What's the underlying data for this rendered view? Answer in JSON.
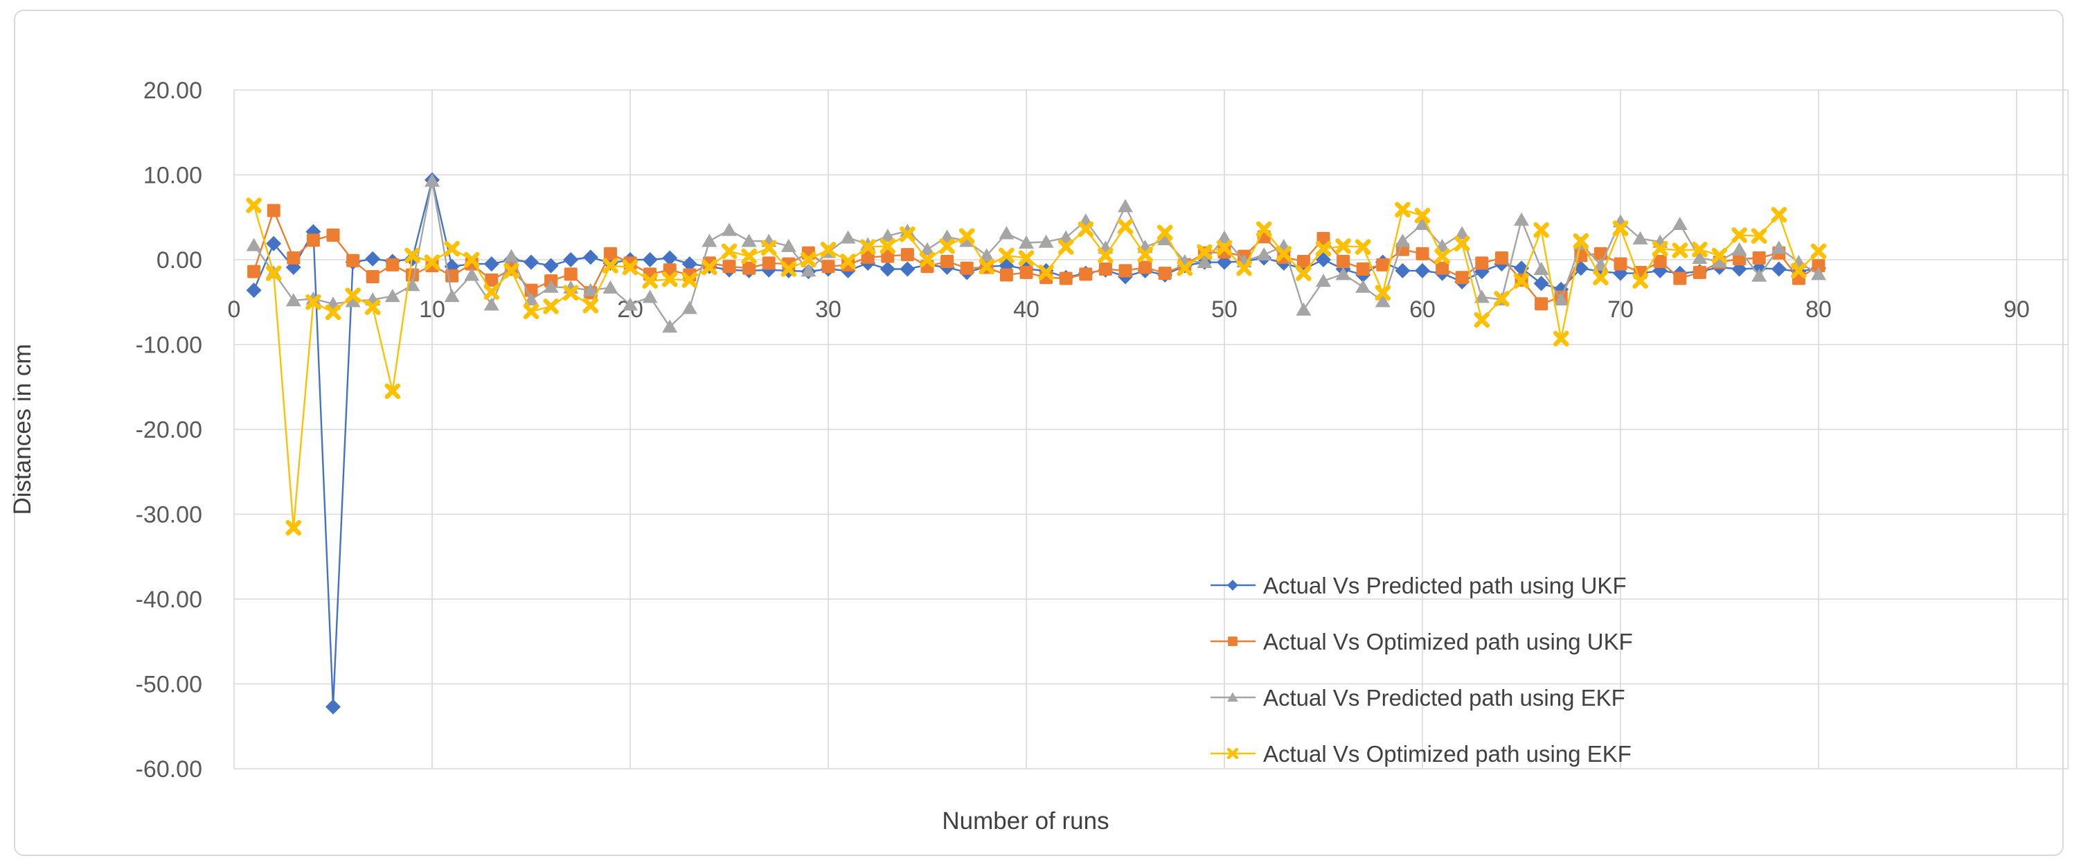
{
  "chart_data": {
    "type": "line",
    "title": "",
    "xlabel": "Number of runs",
    "ylabel": "Distances in cm",
    "x_ticks": [
      0,
      10,
      20,
      30,
      40,
      50,
      60,
      70,
      80,
      90
    ],
    "y_ticks": [
      {
        "label": "20.00",
        "value": 20
      },
      {
        "label": "10.00",
        "value": 10
      },
      {
        "label": "0.00",
        "value": 0
      },
      {
        "label": "-10.00",
        "value": -10
      },
      {
        "label": "-20.00",
        "value": -20
      },
      {
        "label": "-30.00",
        "value": -30
      },
      {
        "label": "-40.00",
        "value": -40
      },
      {
        "label": "-50.00",
        "value": -50
      },
      {
        "label": "-60.00",
        "value": -60
      }
    ],
    "xlim": [
      0,
      92.6
    ],
    "ylim": [
      -60,
      20
    ],
    "grid": true,
    "legend_position": "inside-center-right",
    "grid_color": "#d9d9d9",
    "tick_label_color": "#595959",
    "axis_title_color": "#404040",
    "x": [
      1,
      2,
      3,
      4,
      5,
      6,
      7,
      8,
      9,
      10,
      11,
      12,
      13,
      14,
      15,
      16,
      17,
      18,
      19,
      20,
      21,
      22,
      23,
      24,
      25,
      26,
      27,
      28,
      29,
      30,
      31,
      32,
      33,
      34,
      35,
      36,
      37,
      38,
      39,
      40,
      41,
      42,
      43,
      44,
      45,
      46,
      47,
      48,
      49,
      50,
      51,
      52,
      53,
      54,
      55,
      56,
      57,
      58,
      59,
      60,
      61,
      62,
      63,
      64,
      65,
      66,
      67,
      68,
      69,
      70,
      71,
      72,
      73,
      74,
      75,
      76,
      77,
      78,
      79,
      80
    ],
    "series": [
      {
        "name": "Actual Vs Predicted path using UKF",
        "color": "#4472c4",
        "marker": "diamond",
        "values": [
          -3.6,
          1.9,
          -0.9,
          3.3,
          -52.7,
          -0.3,
          0.1,
          -0.2,
          0.1,
          9.4,
          -0.8,
          -0.5,
          -0.5,
          0.0,
          -0.3,
          -0.7,
          0.0,
          0.3,
          -0.4,
          0.0,
          0.0,
          0.2,
          -0.5,
          -0.8,
          -1.2,
          -1.3,
          -1.2,
          -1.3,
          -1.4,
          -1.1,
          -1.3,
          -0.4,
          -1.1,
          -1.1,
          -0.6,
          -0.9,
          -1.5,
          -0.8,
          -0.7,
          -1.1,
          -1.3,
          -2.1,
          -1.6,
          -1.2,
          -2.0,
          -1.3,
          -1.8,
          -0.7,
          -0.3,
          -0.3,
          -0.2,
          0.2,
          -0.4,
          -1.1,
          0.0,
          -1.1,
          -1.8,
          -0.3,
          -1.3,
          -1.3,
          -1.6,
          -2.6,
          -1.4,
          -0.5,
          -1.0,
          -2.8,
          -3.5,
          -1.0,
          -1.4,
          -1.6,
          -1.6,
          -1.3,
          -1.6,
          -1.4,
          -0.9,
          -1.1,
          -1.0,
          -1.1,
          -1.4,
          -1.0
        ]
      },
      {
        "name": "Actual Vs Optimized path using UKF",
        "color": "#ed7d31",
        "marker": "square",
        "values": [
          -1.4,
          5.8,
          0.2,
          2.3,
          2.9,
          -0.1,
          -2.0,
          -0.6,
          -1.8,
          -0.7,
          -1.9,
          -0.5,
          -2.4,
          -1.1,
          -3.6,
          -2.5,
          -1.7,
          -3.9,
          0.7,
          -0.4,
          -1.7,
          -1.2,
          -1.8,
          -0.4,
          -0.8,
          -1.0,
          -0.4,
          -0.5,
          0.8,
          -0.8,
          -0.6,
          0.3,
          0.4,
          0.6,
          -0.8,
          -0.2,
          -1.0,
          -0.9,
          -1.8,
          -1.5,
          -2.1,
          -2.2,
          -1.7,
          -1.1,
          -1.3,
          -0.9,
          -1.6,
          -0.6,
          0.8,
          0.9,
          0.4,
          2.7,
          0.3,
          -0.2,
          2.5,
          -0.2,
          -1.1,
          -0.6,
          1.2,
          0.7,
          -1.0,
          -2.1,
          -0.4,
          0.2,
          -2.4,
          -5.2,
          -4.4,
          0.5,
          0.7,
          -0.5,
          -1.5,
          -0.2,
          -2.2,
          -1.5,
          -0.3,
          0.1,
          0.2,
          0.8,
          -2.2,
          -0.7
        ]
      },
      {
        "name": "Actual Vs Predicted path using EKF",
        "color": "#a5a5a5",
        "marker": "triangle",
        "values": [
          1.7,
          -1.5,
          -4.8,
          -4.6,
          -5.2,
          -4.9,
          -4.7,
          -4.3,
          -3.0,
          9.3,
          -4.3,
          -1.8,
          -5.3,
          0.4,
          -4.7,
          -3.2,
          -3.3,
          -3.6,
          -3.3,
          -5.3,
          -4.4,
          -7.9,
          -5.7,
          2.2,
          3.5,
          2.2,
          2.2,
          1.6,
          -1.3,
          0.9,
          2.6,
          1.8,
          2.8,
          3.4,
          1.2,
          2.7,
          2.2,
          0.5,
          3.1,
          2.0,
          2.1,
          2.6,
          4.6,
          1.4,
          6.3,
          1.5,
          2.4,
          -0.2,
          -0.3,
          2.6,
          -0.2,
          0.6,
          1.6,
          -5.9,
          -2.5,
          -1.7,
          -3.2,
          -4.9,
          2.2,
          4.2,
          1.6,
          3.1,
          -4.4,
          -4.7,
          4.7,
          -1.1,
          -4.7,
          1.9,
          -0.6,
          4.5,
          2.5,
          2.1,
          4.2,
          0.2,
          -0.2,
          1.2,
          -1.9,
          1.4,
          -0.3,
          -1.7
        ]
      },
      {
        "name": "Actual Vs Optimized path using EKF",
        "color": "#ffc000",
        "marker": "xcross",
        "values": [
          6.4,
          -1.6,
          -31.6,
          -5.0,
          -6.2,
          -4.2,
          -5.6,
          -15.5,
          0.5,
          -0.3,
          1.3,
          0.0,
          -3.8,
          -1.3,
          -6.1,
          -5.5,
          -3.9,
          -5.4,
          -0.7,
          -0.9,
          -2.5,
          -2.3,
          -2.4,
          -0.9,
          1.0,
          0.4,
          1.4,
          -1.1,
          0.0,
          1.2,
          -0.2,
          1.5,
          1.6,
          3.0,
          0.0,
          1.6,
          2.8,
          -0.8,
          0.5,
          0.2,
          -1.5,
          1.5,
          3.6,
          0.5,
          3.9,
          0.6,
          3.2,
          -1.0,
          0.9,
          1.4,
          -1.0,
          3.6,
          0.7,
          -1.6,
          1.3,
          1.6,
          1.5,
          -3.9,
          5.9,
          5.2,
          0.4,
          1.9,
          -7.1,
          -4.6,
          -2.5,
          3.5,
          -9.3,
          2.2,
          -2.1,
          3.7,
          -2.5,
          1.3,
          1.1,
          1.2,
          0.5,
          2.9,
          2.8,
          5.3,
          -1.3,
          1.0
        ]
      }
    ]
  }
}
